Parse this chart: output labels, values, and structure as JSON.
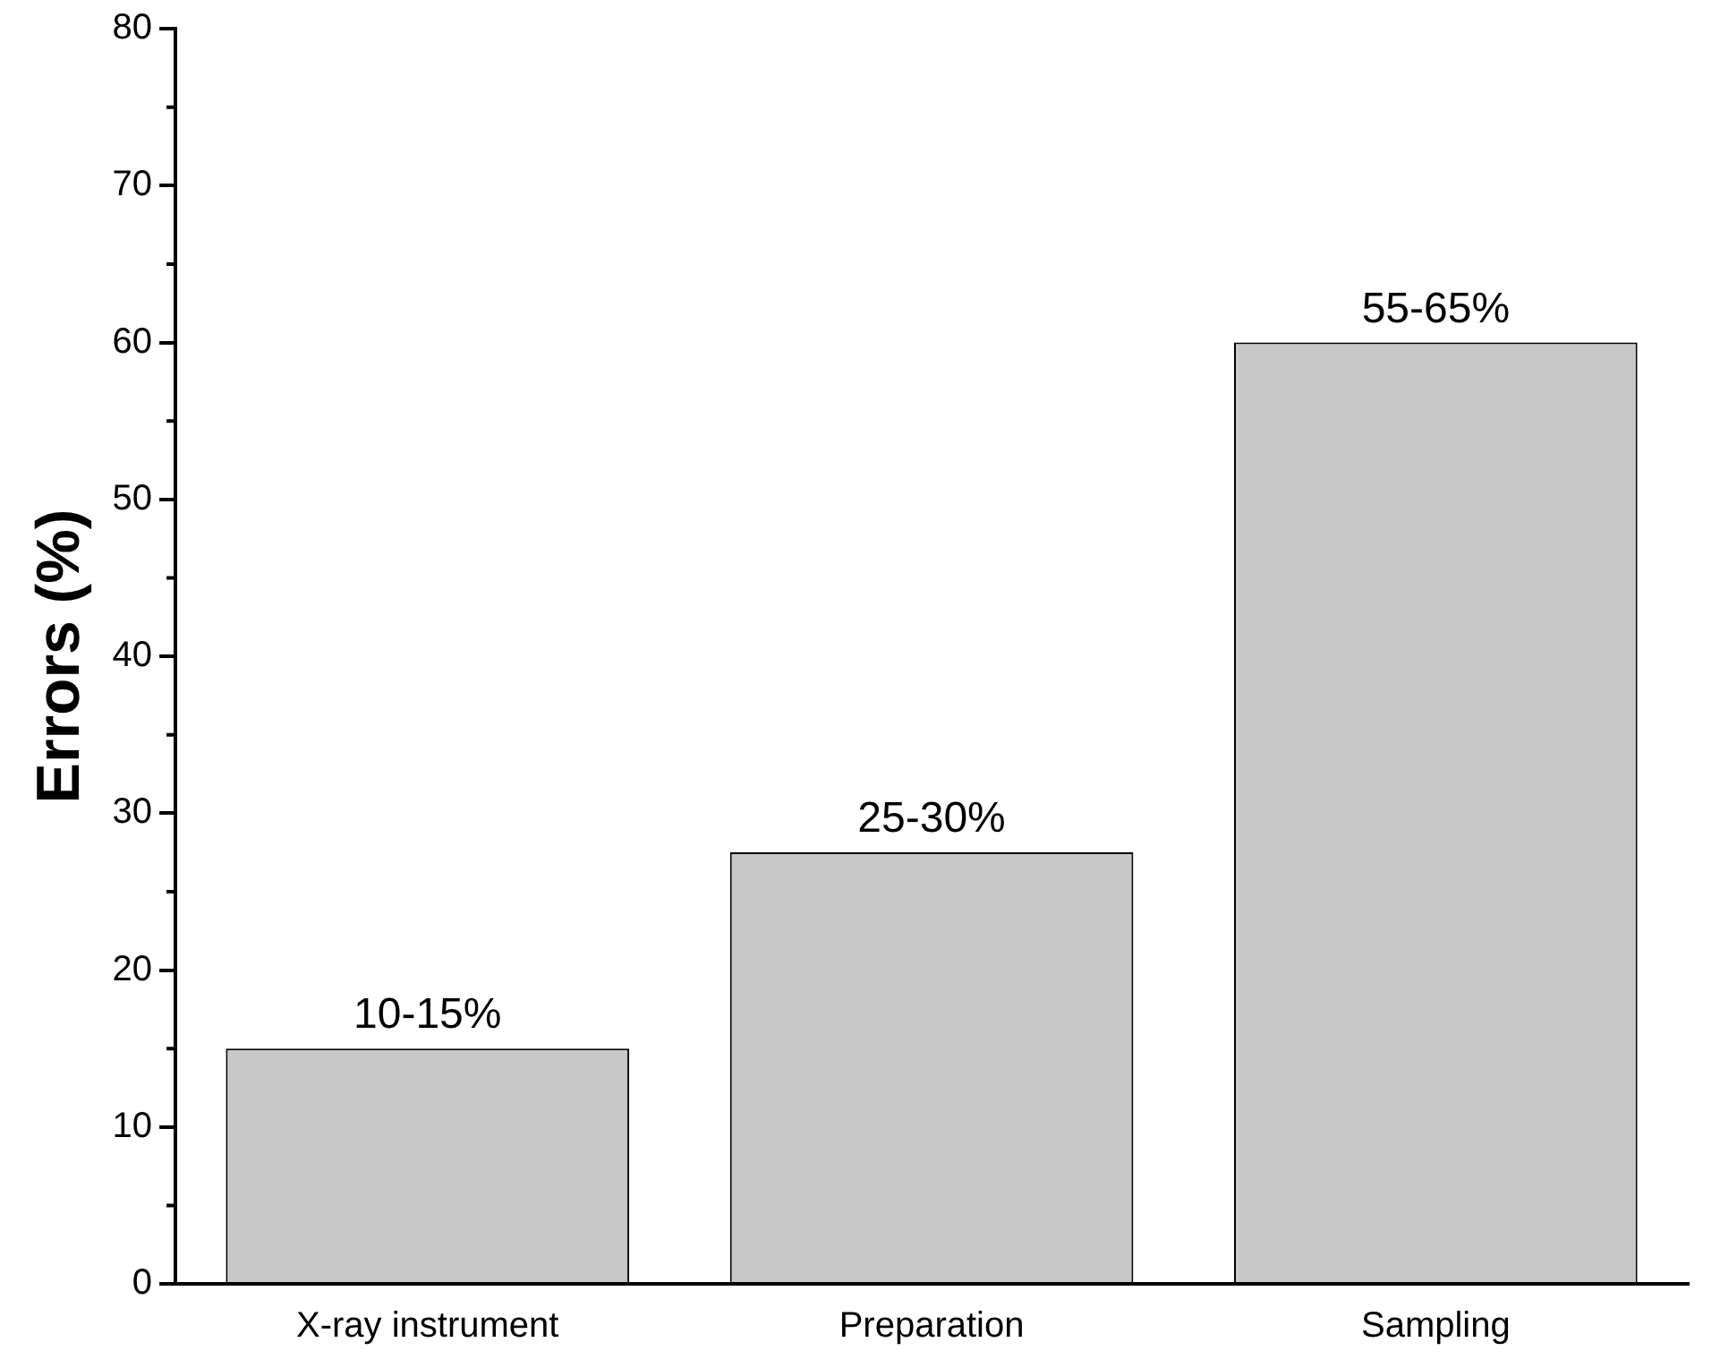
{
  "chart_data": {
    "type": "bar",
    "ylabel": "Errors (%)",
    "categories": [
      "X-ray instrument",
      "Preparation",
      "Sampling"
    ],
    "series": [
      {
        "color": "#c8c8c8",
        "values": [
          15,
          27.5,
          60
        ]
      }
    ],
    "annotations": [
      {
        "text": "10-15%",
        "x": "X-ray instrument",
        "y": 15
      },
      {
        "text": "25-30%",
        "x": "Preparation",
        "y": 27.5
      },
      {
        "text": "55-65%",
        "x": "Sampling",
        "y": 60
      }
    ],
    "ylim": [
      0,
      80
    ],
    "yticks": [
      0,
      10,
      20,
      30,
      40,
      50,
      60,
      70,
      80
    ],
    "grid": false,
    "legend": false
  }
}
